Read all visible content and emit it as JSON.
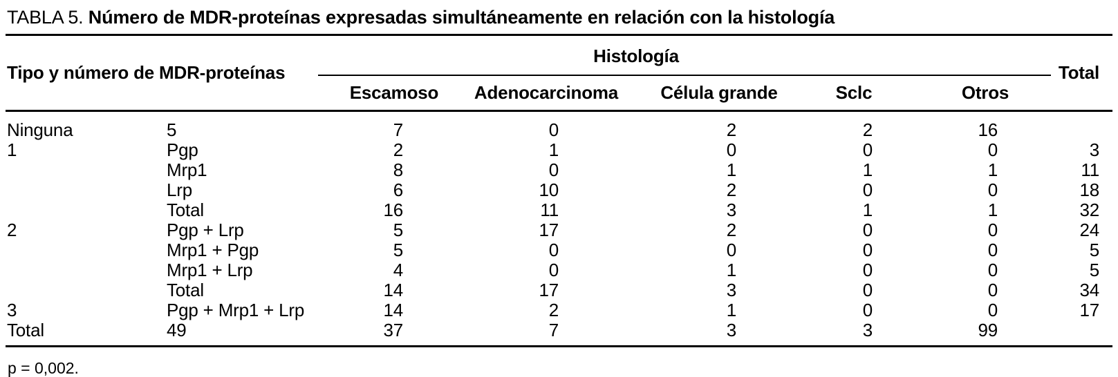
{
  "title": {
    "prefix": "TABLA 5.",
    "main": "Número de MDR-proteínas expresadas simultáneamente en relación con la histología"
  },
  "table": {
    "row_header": "Tipo y número de MDR-proteínas",
    "group_header": "Histología",
    "total_header": "Total",
    "columns": [
      "Escamoso",
      "Adenocarcinoma",
      "Célula grande",
      "Sclc",
      "Otros"
    ],
    "rows": [
      {
        "type": "Ninguna",
        "protein": "5",
        "values": [
          "7",
          "0",
          "2",
          "2",
          "16"
        ],
        "total": ""
      },
      {
        "type": "1",
        "protein": "Pgp",
        "values": [
          "2",
          "1",
          "0",
          "0",
          "0"
        ],
        "total": "3"
      },
      {
        "type": "",
        "protein": "Mrp1",
        "values": [
          "8",
          "0",
          "1",
          "1",
          "1"
        ],
        "total": "11"
      },
      {
        "type": "",
        "protein": "Lrp",
        "values": [
          "6",
          "10",
          "2",
          "0",
          "0"
        ],
        "total": "18"
      },
      {
        "type": "",
        "protein": "Total",
        "values": [
          "16",
          "11",
          "3",
          "1",
          "1"
        ],
        "total": "32"
      },
      {
        "type": "2",
        "protein": "Pgp + Lrp",
        "values": [
          "5",
          "17",
          "2",
          "0",
          "0"
        ],
        "total": "24"
      },
      {
        "type": "",
        "protein": "Mrp1 + Pgp",
        "values": [
          "5",
          "0",
          "0",
          "0",
          "0"
        ],
        "total": "5"
      },
      {
        "type": "",
        "protein": "Mrp1 + Lrp",
        "values": [
          "4",
          "0",
          "1",
          "0",
          "0"
        ],
        "total": "5"
      },
      {
        "type": "",
        "protein": "Total",
        "values": [
          "14",
          "17",
          "3",
          "0",
          "0"
        ],
        "total": "34"
      },
      {
        "type": "3",
        "protein": "Pgp + Mrp1 + Lrp",
        "values": [
          "14",
          "2",
          "1",
          "0",
          "0"
        ],
        "total": "17"
      },
      {
        "type": "Total",
        "protein": "49",
        "values": [
          "37",
          "7",
          "3",
          "3",
          "99"
        ],
        "total": ""
      }
    ]
  },
  "footnote": "p = 0,002."
}
